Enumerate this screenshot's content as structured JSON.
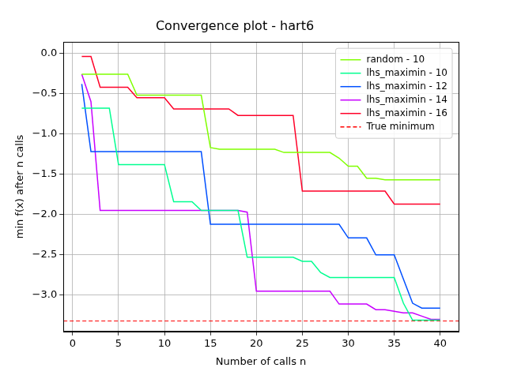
{
  "chart_data": {
    "type": "line",
    "title": "Convergence plot - hart6",
    "x_label": "Number of calls n",
    "y_label": "min f(x) after n calls",
    "x": [
      1,
      2,
      3,
      4,
      5,
      6,
      7,
      8,
      9,
      10,
      11,
      12,
      13,
      14,
      15,
      16,
      17,
      18,
      19,
      20,
      21,
      22,
      23,
      24,
      25,
      26,
      27,
      28,
      29,
      30,
      31,
      32,
      33,
      34,
      35,
      36,
      37,
      38,
      39,
      40
    ],
    "series": [
      {
        "name": "random - 10",
        "color": "#80ff00",
        "values": [
          -0.26,
          -0.26,
          -0.26,
          -0.26,
          -0.26,
          -0.26,
          -0.52,
          -0.52,
          -0.52,
          -0.52,
          -0.52,
          -0.52,
          -0.52,
          -0.52,
          -1.17,
          -1.19,
          -1.19,
          -1.19,
          -1.19,
          -1.19,
          -1.19,
          -1.19,
          -1.23,
          -1.23,
          -1.23,
          -1.23,
          -1.23,
          -1.23,
          -1.3,
          -1.4,
          -1.4,
          -1.55,
          -1.55,
          -1.57,
          -1.57,
          -1.57,
          -1.57,
          -1.57,
          -1.57,
          -1.57
        ]
      },
      {
        "name": "lhs_maximin - 10",
        "color": "#00ff90",
        "values": [
          -0.68,
          -0.68,
          -0.68,
          -0.68,
          -1.38,
          -1.38,
          -1.38,
          -1.38,
          -1.38,
          -1.38,
          -1.84,
          -1.84,
          -1.84,
          -1.95,
          -1.95,
          -1.95,
          -1.95,
          -1.95,
          -2.53,
          -2.53,
          -2.53,
          -2.53,
          -2.53,
          -2.53,
          -2.58,
          -2.58,
          -2.72,
          -2.78,
          -2.78,
          -2.78,
          -2.78,
          -2.78,
          -2.78,
          -2.78,
          -2.78,
          -3.1,
          -3.31,
          -3.31,
          -3.31,
          -3.31
        ]
      },
      {
        "name": "lhs_maximin - 12",
        "color": "#0050ff",
        "values": [
          -0.38,
          -1.22,
          -1.22,
          -1.22,
          -1.22,
          -1.22,
          -1.22,
          -1.22,
          -1.22,
          -1.22,
          -1.22,
          -1.22,
          -1.22,
          -1.22,
          -2.12,
          -2.12,
          -2.12,
          -2.12,
          -2.12,
          -2.12,
          -2.12,
          -2.12,
          -2.12,
          -2.12,
          -2.12,
          -2.12,
          -2.12,
          -2.12,
          -2.12,
          -2.29,
          -2.29,
          -2.29,
          -2.5,
          -2.5,
          -2.5,
          -2.8,
          -3.1,
          -3.16,
          -3.16,
          -3.16
        ]
      },
      {
        "name": "lhs_maximin - 14",
        "color": "#c800ff",
        "values": [
          -0.26,
          -0.6,
          -1.95,
          -1.95,
          -1.95,
          -1.95,
          -1.95,
          -1.95,
          -1.95,
          -1.95,
          -1.95,
          -1.95,
          -1.95,
          -1.95,
          -1.95,
          -1.95,
          -1.95,
          -1.95,
          -1.97,
          -2.95,
          -2.95,
          -2.95,
          -2.95,
          -2.95,
          -2.95,
          -2.95,
          -2.95,
          -2.95,
          -3.11,
          -3.11,
          -3.11,
          -3.11,
          -3.18,
          -3.18,
          -3.2,
          -3.22,
          -3.22,
          -3.26,
          -3.3,
          -3.3
        ]
      },
      {
        "name": "lhs_maximin - 16",
        "color": "#ff0028",
        "values": [
          -0.04,
          -0.04,
          -0.42,
          -0.42,
          -0.42,
          -0.42,
          -0.55,
          -0.55,
          -0.55,
          -0.55,
          -0.69,
          -0.69,
          -0.69,
          -0.69,
          -0.69,
          -0.69,
          -0.69,
          -0.77,
          -0.77,
          -0.77,
          -0.77,
          -0.77,
          -0.77,
          -0.77,
          -1.71,
          -1.71,
          -1.71,
          -1.71,
          -1.71,
          -1.71,
          -1.71,
          -1.71,
          -1.71,
          -1.71,
          -1.87,
          -1.87,
          -1.87,
          -1.87,
          -1.87,
          -1.87
        ]
      }
    ],
    "hlines": [
      {
        "name": "True minimum",
        "value": -3.32,
        "color": "#ff0000",
        "line_style": "dashed"
      }
    ],
    "xlim": [
      -1,
      42
    ],
    "ylim": [
      -3.45,
      0.14
    ],
    "xticks": [
      0,
      5,
      10,
      15,
      20,
      25,
      30,
      35,
      40
    ],
    "yticks": [
      {
        "value": -3,
        "label": "−3.0"
      },
      {
        "value": -2.5,
        "label": "−2.5"
      },
      {
        "value": -2,
        "label": "−2.0"
      },
      {
        "value": -1.5,
        "label": "−1.5"
      },
      {
        "value": -1,
        "label": "−1.0"
      },
      {
        "value": -0.5,
        "label": "−0.5"
      },
      {
        "value": 0,
        "label": "0.0"
      }
    ],
    "grid": true,
    "legend": "upper right"
  }
}
